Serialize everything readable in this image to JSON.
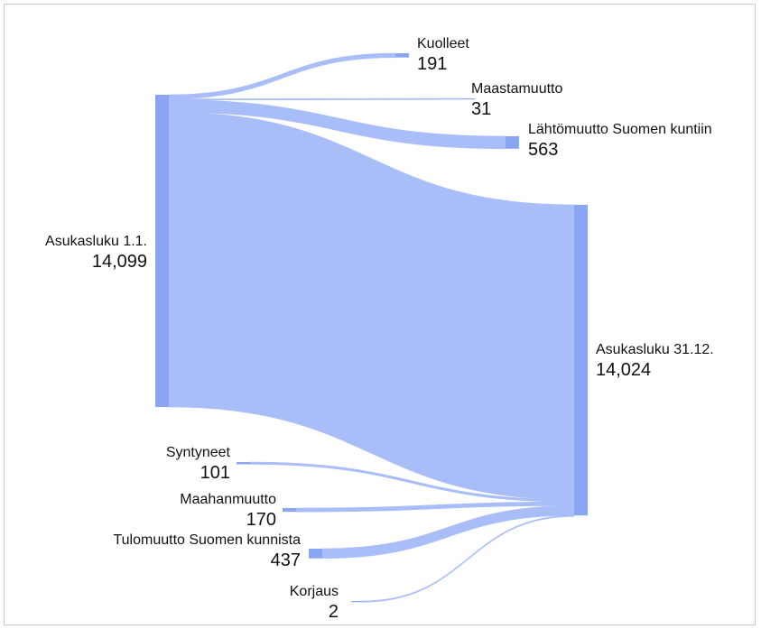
{
  "chart_data": {
    "type": "sankey",
    "title": "",
    "colors": {
      "node": "#8aa6f3",
      "link": "#a9bdf8",
      "text": "#111111",
      "frame": "#c8c8c8"
    },
    "nodes": [
      {
        "id": "start",
        "label": "Asukasluku 1.1.",
        "value": 14099,
        "value_text": "14,099"
      },
      {
        "id": "end",
        "label": "Asukasluku 31.12.",
        "value": 14024,
        "value_text": "14,024"
      },
      {
        "id": "kuolleet",
        "label": "Kuolleet",
        "value": 191,
        "value_text": "191"
      },
      {
        "id": "maastamuutto",
        "label": "Maastamuutto",
        "value": 31,
        "value_text": "31"
      },
      {
        "id": "lahtomuutto",
        "label": "Lähtömuutto Suomen kuntiin",
        "value": 563,
        "value_text": "563"
      },
      {
        "id": "syntyneet",
        "label": "Syntyneet",
        "value": 101,
        "value_text": "101"
      },
      {
        "id": "maahanmuutto",
        "label": "Maahanmuutto",
        "value": 170,
        "value_text": "170"
      },
      {
        "id": "tulomuutto",
        "label": "Tulomuutto Suomen kunnista",
        "value": 437,
        "value_text": "437"
      },
      {
        "id": "korjaus",
        "label": "Korjaus",
        "value": 2,
        "value_text": "2"
      }
    ],
    "links": [
      {
        "source": "start",
        "target": "kuolleet",
        "value": 191
      },
      {
        "source": "start",
        "target": "maastamuutto",
        "value": 31
      },
      {
        "source": "start",
        "target": "lahtomuutto",
        "value": 563
      },
      {
        "source": "start",
        "target": "end",
        "value": 13314
      },
      {
        "source": "syntyneet",
        "target": "end",
        "value": 101
      },
      {
        "source": "maahanmuutto",
        "target": "end",
        "value": 170
      },
      {
        "source": "tulomuutto",
        "target": "end",
        "value": 437
      },
      {
        "source": "korjaus",
        "target": "end",
        "value": 2
      }
    ]
  }
}
